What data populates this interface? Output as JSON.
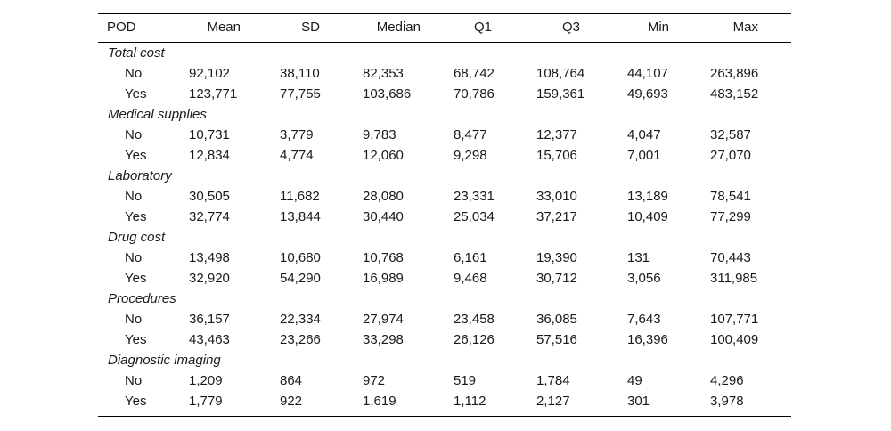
{
  "table": {
    "header": [
      "POD",
      "Mean",
      "SD",
      "Median",
      "Q1",
      "Q3",
      "Min",
      "Max"
    ],
    "groups": [
      {
        "label": "Total cost",
        "rows": [
          {
            "label": "No",
            "cells": [
              "92,102",
              "38,110",
              "82,353",
              "68,742",
              "108,764",
              "44,107",
              "263,896"
            ]
          },
          {
            "label": "Yes",
            "cells": [
              "123,771",
              "77,755",
              "103,686",
              "70,786",
              "159,361",
              "49,693",
              "483,152"
            ]
          }
        ]
      },
      {
        "label": "Medical supplies",
        "rows": [
          {
            "label": "No",
            "cells": [
              "10,731",
              "3,779",
              "9,783",
              "8,477",
              "12,377",
              "4,047",
              "32,587"
            ]
          },
          {
            "label": "Yes",
            "cells": [
              "12,834",
              "4,774",
              "12,060",
              "9,298",
              "15,706",
              "7,001",
              "27,070"
            ]
          }
        ]
      },
      {
        "label": "Laboratory",
        "rows": [
          {
            "label": "No",
            "cells": [
              "30,505",
              "11,682",
              "28,080",
              "23,331",
              "33,010",
              "13,189",
              "78,541"
            ]
          },
          {
            "label": "Yes",
            "cells": [
              "32,774",
              "13,844",
              "30,440",
              "25,034",
              "37,217",
              "10,409",
              "77,299"
            ]
          }
        ]
      },
      {
        "label": "Drug cost",
        "rows": [
          {
            "label": "No",
            "cells": [
              "13,498",
              "10,680",
              "10,768",
              "6,161",
              "19,390",
              "131",
              "70,443"
            ]
          },
          {
            "label": "Yes",
            "cells": [
              "32,920",
              "54,290",
              "16,989",
              "9,468",
              "30,712",
              "3,056",
              "311,985"
            ]
          }
        ]
      },
      {
        "label": "Procedures",
        "rows": [
          {
            "label": "No",
            "cells": [
              "36,157",
              "22,334",
              "27,974",
              "23,458",
              "36,085",
              "7,643",
              "107,771"
            ]
          },
          {
            "label": "Yes",
            "cells": [
              "43,463",
              "23,266",
              "33,298",
              "26,126",
              "57,516",
              "16,396",
              "100,409"
            ]
          }
        ]
      },
      {
        "label": "Diagnostic imaging",
        "rows": [
          {
            "label": "No",
            "cells": [
              "1,209",
              "864",
              "972",
              "519",
              "1,784",
              "49",
              "4,296"
            ]
          },
          {
            "label": "Yes",
            "cells": [
              "1,779",
              "922",
              "1,619",
              "1,112",
              "2,127",
              "301",
              "3,978"
            ]
          }
        ]
      }
    ]
  }
}
